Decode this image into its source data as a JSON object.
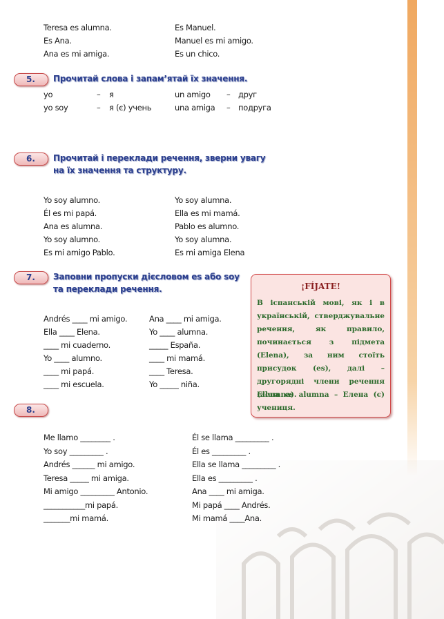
{
  "intro": {
    "left": [
      "Teresa es alumna.",
      "Es Ana.",
      "Ana es mi amiga."
    ],
    "right": [
      "Es Manuel.",
      "Manuel es mi amigo.",
      "Es un chico."
    ]
  },
  "exercise_5": {
    "number": "5.",
    "title": [
      "Прочитай слова і запам’ятай їх значення."
    ],
    "vocabulary_left": [
      [
        "yo",
        "–",
        "я"
      ],
      [
        "yo soy",
        "–",
        "я (є) учень"
      ]
    ],
    "vocabulary_right": [
      [
        "un amigo",
        "–",
        "друг"
      ],
      [
        "una amiga",
        "–",
        "подруга"
      ]
    ]
  },
  "exercise_6": {
    "number": "6.",
    "title": [
      "Прочитай і переклади речення, зверни увагу",
      "на їх значення та структуру."
    ],
    "left": [
      "Yo soy alumno.",
      "Él es mi papá.",
      "Ana es alumna.",
      "Yo soy alumno.",
      "Es mi amigo Pablo."
    ],
    "right": [
      "Yo soy alumna.",
      "Ella es mi mamá.",
      "Pablo es alumno.",
      "Yo soy alumna.",
      "Es mi amiga Elena"
    ]
  },
  "exercise_7": {
    "number": "7.",
    "title": [
      "Заповни пропуски дієсловом es або soy",
      "та переклади речення."
    ],
    "left": [
      "Andrés ____ mi amigo.",
      "Ella ____ Elena.",
      "____ mi cuaderno.",
      "Yo ____ alumno.",
      "____ mi papá.",
      "____ mi escuela."
    ],
    "right": [
      "Ana ____ mi amiga.",
      "Yo ____ alumna.",
      "_____ España.",
      "____ mi mamá.",
      "____ Teresa.",
      "Yo _____ niña."
    ]
  },
  "note": {
    "title": "¡FÍJATE!",
    "text": "В іспанській мові, як і в українській, стверджувальне речення, як правило, починається з підмета (Elena), за ним стоїть присудок (es), далі – другорядні члени речення (alumna).",
    "example": "Elena es alumna – Елена (є) учениця."
  },
  "exercise_8": {
    "number": "8.",
    "left": [
      "Me llamo ________ .",
      "Yo soy _________ .",
      "Andrés ______ mi amigo.",
      "Teresa _____ mi amiga.",
      "Mi amigo _________ Antonio.",
      "___________mi papá.",
      "_______mi mamá."
    ],
    "right": [
      "Él se llama _________ .",
      "Él es _________ .",
      "Ella se llama _________ .",
      "Ella es _________ .",
      "Ana ____ mi amiga.",
      "Mi papá ____ Andrés.",
      "Mi mamá ____Ana."
    ]
  }
}
